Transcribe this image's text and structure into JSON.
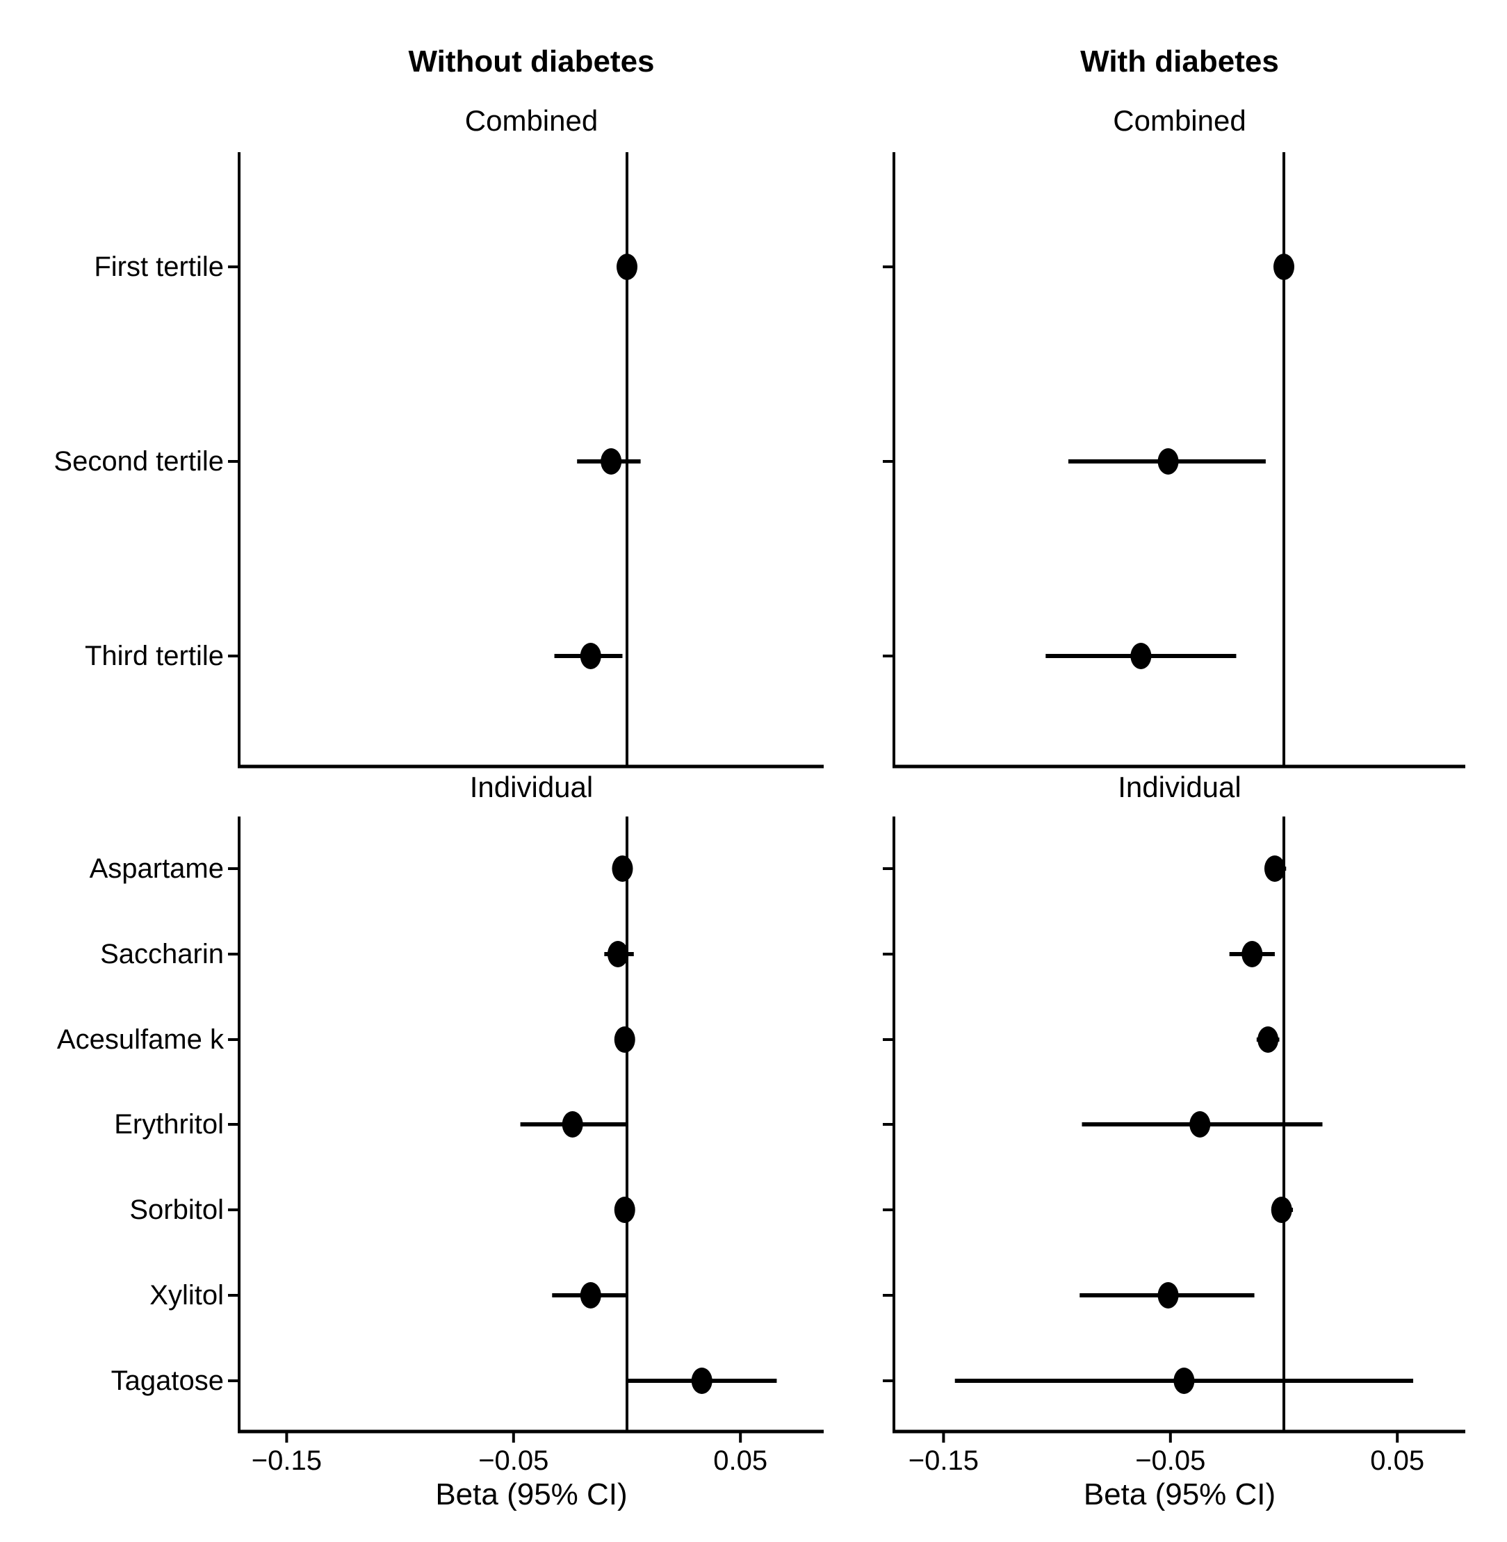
{
  "page": {
    "background": "#ffffff",
    "text_color": "#000000",
    "marker_color": "#000000"
  },
  "chart_data": [
    {
      "type": "scatter",
      "panel_id": "without-diabetes-combined",
      "column_title": "Without diabetes",
      "subtitle": "Combined",
      "show_y_labels": true,
      "x_axis": {
        "label": "Beta (95% CI)",
        "tick_values": [
          -0.15,
          -0.05,
          0.05
        ],
        "tick_labels": [
          "−0.15",
          "−0.05",
          "0.05"
        ],
        "range": [
          -0.171,
          0.08
        ],
        "tick_labels_shown": false
      },
      "reference_line_x": 0,
      "categories": [
        "First tertile",
        "Second tertile",
        "Third tertile"
      ],
      "points": [
        {
          "label": "First tertile",
          "beta": 0.0,
          "ci_low": 0.0,
          "ci_high": 0.0
        },
        {
          "label": "Second tertile",
          "beta": -0.007,
          "ci_low": -0.022,
          "ci_high": 0.006
        },
        {
          "label": "Third tertile",
          "beta": -0.016,
          "ci_low": -0.032,
          "ci_high": -0.002
        }
      ]
    },
    {
      "type": "scatter",
      "panel_id": "with-diabetes-combined",
      "column_title": "With diabetes",
      "subtitle": "Combined",
      "show_y_labels": false,
      "x_axis": {
        "label": "Beta (95% CI)",
        "tick_values": [
          -0.15,
          -0.05,
          0.05
        ],
        "tick_labels": [
          "−0.15",
          "−0.05",
          "0.05"
        ],
        "range": [
          -0.171,
          0.08
        ],
        "tick_labels_shown": false
      },
      "reference_line_x": 0,
      "categories": [
        "First tertile",
        "Second tertile",
        "Third tertile"
      ],
      "points": [
        {
          "label": "First tertile",
          "beta": 0.0,
          "ci_low": 0.0,
          "ci_high": 0.0
        },
        {
          "label": "Second tertile",
          "beta": -0.051,
          "ci_low": -0.095,
          "ci_high": -0.008
        },
        {
          "label": "Third tertile",
          "beta": -0.063,
          "ci_low": -0.105,
          "ci_high": -0.021
        }
      ]
    },
    {
      "type": "scatter",
      "panel_id": "without-diabetes-individual",
      "column_title": "Without diabetes",
      "subtitle": "Individual",
      "show_y_labels": true,
      "x_axis": {
        "label": "Beta (95% CI)",
        "tick_values": [
          -0.15,
          -0.05,
          0.05
        ],
        "tick_labels": [
          "−0.15",
          "−0.05",
          "0.05"
        ],
        "range": [
          -0.171,
          0.08
        ],
        "tick_labels_shown": true
      },
      "reference_line_x": 0,
      "categories": [
        "Aspartame",
        "Saccharin",
        "Acesulfame k",
        "Erythritol",
        "Sorbitol",
        "Xylitol",
        "Tagatose"
      ],
      "points": [
        {
          "label": "Aspartame",
          "beta": -0.002,
          "ci_low": -0.005,
          "ci_high": 0.002
        },
        {
          "label": "Saccharin",
          "beta": -0.004,
          "ci_low": -0.01,
          "ci_high": 0.003
        },
        {
          "label": "Acesulfame k",
          "beta": -0.001,
          "ci_low": -0.004,
          "ci_high": 0.003
        },
        {
          "label": "Erythritol",
          "beta": -0.024,
          "ci_low": -0.047,
          "ci_high": 0.0
        },
        {
          "label": "Sorbitol",
          "beta": -0.001,
          "ci_low": -0.005,
          "ci_high": 0.003
        },
        {
          "label": "Xylitol",
          "beta": -0.016,
          "ci_low": -0.033,
          "ci_high": 0.0
        },
        {
          "label": "Tagatose",
          "beta": 0.033,
          "ci_low": 0.0,
          "ci_high": 0.066
        }
      ]
    },
    {
      "type": "scatter",
      "panel_id": "with-diabetes-individual",
      "column_title": "With diabetes",
      "subtitle": "Individual",
      "show_y_labels": false,
      "x_axis": {
        "label": "Beta (95% CI)",
        "tick_values": [
          -0.15,
          -0.05,
          0.05
        ],
        "tick_labels": [
          "−0.15",
          "−0.05",
          "0.05"
        ],
        "range": [
          -0.171,
          0.08
        ],
        "tick_labels_shown": true
      },
      "reference_line_x": 0,
      "categories": [
        "Aspartame",
        "Saccharin",
        "Acesulfame k",
        "Erythritol",
        "Sorbitol",
        "Xylitol",
        "Tagatose"
      ],
      "points": [
        {
          "label": "Aspartame",
          "beta": -0.004,
          "ci_low": -0.008,
          "ci_high": 0.001
        },
        {
          "label": "Saccharin",
          "beta": -0.014,
          "ci_low": -0.024,
          "ci_high": -0.004
        },
        {
          "label": "Acesulfame k",
          "beta": -0.007,
          "ci_low": -0.012,
          "ci_high": -0.002
        },
        {
          "label": "Erythritol",
          "beta": -0.037,
          "ci_low": -0.089,
          "ci_high": 0.017
        },
        {
          "label": "Sorbitol",
          "beta": -0.001,
          "ci_low": -0.005,
          "ci_high": 0.004
        },
        {
          "label": "Xylitol",
          "beta": -0.051,
          "ci_low": -0.09,
          "ci_high": -0.013
        },
        {
          "label": "Tagatose",
          "beta": -0.044,
          "ci_low": -0.145,
          "ci_high": 0.057
        }
      ]
    }
  ]
}
